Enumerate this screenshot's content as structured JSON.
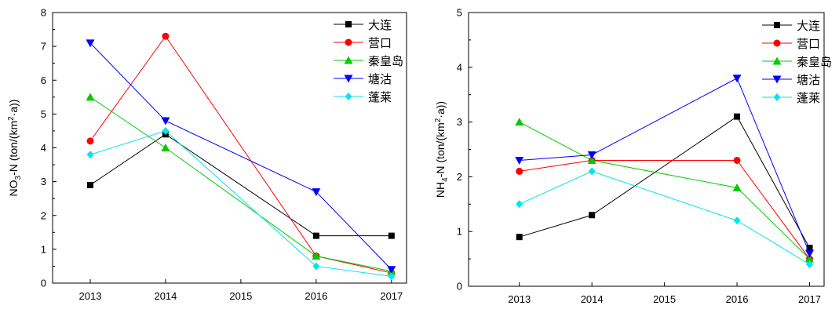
{
  "chart_data": [
    {
      "type": "line",
      "ylabel": {
        "main": "NO",
        "sub1": "3",
        "mid": "-N (ton/(km",
        "sup": "2",
        "end": "·a))"
      },
      "x": [
        2013,
        2014,
        2015,
        2016,
        2017
      ],
      "xlim": [
        2012.5,
        2017.2
      ],
      "ylim": [
        0,
        8
      ],
      "xticks": [
        "2013",
        "2014",
        "2015",
        "2016",
        "2017"
      ],
      "yticks": [
        "0",
        "1",
        "2",
        "3",
        "4",
        "5",
        "6",
        "7",
        "8"
      ],
      "legend_position": "top-right",
      "series": [
        {
          "name": "大连",
          "color": "#000000",
          "marker": "square",
          "x": [
            2013,
            2014,
            2016,
            2017
          ],
          "values": [
            2.9,
            4.4,
            1.4,
            1.4
          ]
        },
        {
          "name": "营口",
          "color": "#ff0000",
          "marker": "circle",
          "x": [
            2013,
            2014,
            2016,
            2017
          ],
          "values": [
            4.2,
            7.3,
            0.8,
            0.3
          ]
        },
        {
          "name": "秦皇岛",
          "color": "#00cc00",
          "marker": "triangle-up",
          "x": [
            2013,
            2014,
            2016,
            2017
          ],
          "values": [
            5.5,
            4.0,
            0.8,
            0.35
          ]
        },
        {
          "name": "塘沽",
          "color": "#0000ff",
          "marker": "triangle-down",
          "x": [
            2013,
            2014,
            2016,
            2017
          ],
          "values": [
            7.1,
            4.8,
            2.7,
            0.4
          ]
        },
        {
          "name": "蓬莱",
          "color": "#00e5ee",
          "marker": "diamond",
          "x": [
            2013,
            2014,
            2016,
            2017
          ],
          "values": [
            3.8,
            4.5,
            0.5,
            0.2
          ]
        }
      ]
    },
    {
      "type": "line",
      "ylabel": {
        "main": "NH",
        "sub1": "4",
        "mid": "-N (ton/(km",
        "sup": "2",
        "end": "·a))"
      },
      "x": [
        2013,
        2014,
        2015,
        2016,
        2017
      ],
      "xlim": [
        2012.3,
        2017.2
      ],
      "ylim": [
        0,
        5
      ],
      "xticks": [
        "2013",
        "2014",
        "2015",
        "2016",
        "2017"
      ],
      "yticks": [
        "0",
        "1",
        "2",
        "3",
        "4",
        "5"
      ],
      "legend_position": "top-right",
      "series": [
        {
          "name": "大连",
          "color": "#000000",
          "marker": "square",
          "x": [
            2013,
            2014,
            2016,
            2017
          ],
          "values": [
            0.9,
            1.3,
            3.1,
            0.7
          ]
        },
        {
          "name": "营口",
          "color": "#ff0000",
          "marker": "circle",
          "x": [
            2013,
            2014,
            2016,
            2017
          ],
          "values": [
            2.1,
            2.3,
            2.3,
            0.5
          ]
        },
        {
          "name": "秦皇岛",
          "color": "#00cc00",
          "marker": "triangle-up",
          "x": [
            2013,
            2014,
            2016,
            2017
          ],
          "values": [
            3.0,
            2.3,
            1.8,
            0.5
          ]
        },
        {
          "name": "塘沽",
          "color": "#0000ff",
          "marker": "triangle-down",
          "x": [
            2013,
            2014,
            2016,
            2017
          ],
          "values": [
            2.3,
            2.4,
            3.8,
            0.6
          ]
        },
        {
          "name": "蓬莱",
          "color": "#00e5ee",
          "marker": "diamond",
          "x": [
            2013,
            2014,
            2016,
            2017
          ],
          "values": [
            1.5,
            2.1,
            1.2,
            0.4
          ]
        }
      ]
    }
  ]
}
